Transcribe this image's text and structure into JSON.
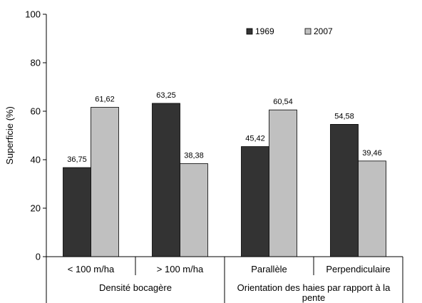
{
  "chart_data": {
    "type": "bar",
    "ylabel": "Superficie (%)",
    "xlabel": "",
    "ylim": [
      0,
      100
    ],
    "yticks": [
      0,
      20,
      40,
      60,
      80,
      100
    ],
    "yticks_labels": [
      "0",
      "20",
      "40",
      "60",
      "80",
      "100"
    ],
    "grid": false,
    "legend_position": "top-right",
    "categories": [
      "< 100 m/ha",
      "> 100 m/ha",
      "Parallèle",
      "Perpendiculaire"
    ],
    "groups": [
      {
        "label_lines": [
          "Densité bocagère"
        ],
        "categories": [
          0,
          1
        ]
      },
      {
        "label_lines": [
          "Orientation des haies par rapport à la",
          "pente"
        ],
        "categories": [
          2,
          3
        ]
      }
    ],
    "series": [
      {
        "name": "1969",
        "color": "#333333",
        "values": [
          36.75,
          63.25,
          45.42,
          54.58
        ],
        "labels": [
          "36,75",
          "63,25",
          "45,42",
          "54,58"
        ]
      },
      {
        "name": "2007",
        "color": "#c0c0c0",
        "values": [
          61.62,
          38.38,
          60.54,
          39.46
        ],
        "labels": [
          "61,62",
          "38,38",
          "60,54",
          "39,46"
        ]
      }
    ]
  }
}
